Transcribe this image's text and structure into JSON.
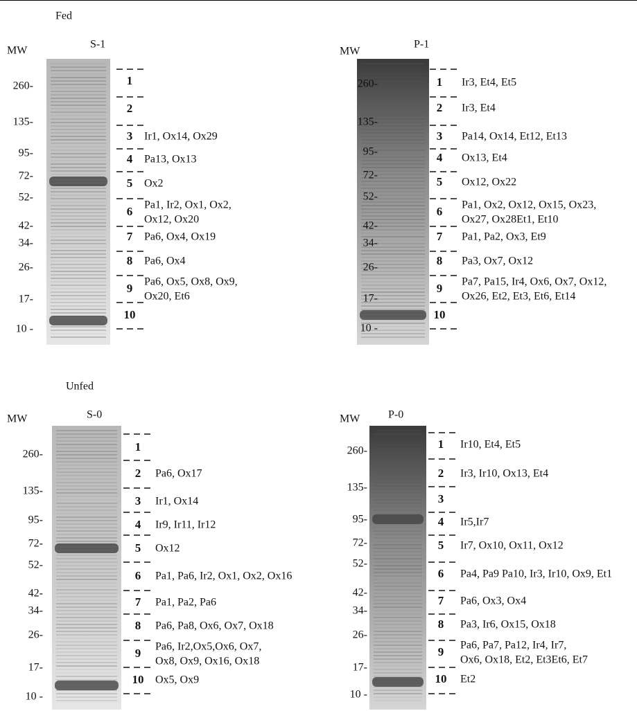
{
  "sections": [
    {
      "title": "Fed",
      "panels": [
        {
          "mw_title": "MW",
          "lane": "S-1",
          "mw_markers": [
            "260-",
            "135-",
            "95-",
            "72-",
            "52-",
            "42-",
            "34-",
            "26-",
            "17-",
            "10 -"
          ],
          "bands": [
            {
              "number": "1"
            },
            {
              "number": "2"
            },
            {
              "number": "3",
              "proteins": [
                "Ir1, Ox14, Ox29"
              ]
            },
            {
              "number": "4",
              "proteins": [
                "Pa13, Ox13"
              ]
            },
            {
              "number": "5",
              "proteins": [
                "Ox2"
              ]
            },
            {
              "number": "6",
              "proteins": [
                "Pa1, Ir2, Ox1, Ox2,",
                "Ox12, Ox20"
              ]
            },
            {
              "number": "7",
              "proteins": [
                "Pa6, Ox4, Ox19"
              ]
            },
            {
              "number": "8",
              "proteins": [
                "Pa6, Ox4"
              ]
            },
            {
              "number": "9",
              "proteins": [
                "Pa6, Ox5, Ox8, Ox9,",
                "Ox20, Et6"
              ]
            },
            {
              "number": "10"
            }
          ]
        },
        {
          "mw_title": "MW",
          "lane": "P-1",
          "mw_markers": [
            "260-",
            "135-",
            "95-",
            "72-",
            "52-",
            "42-",
            "34-",
            "26-",
            "17-",
            "10 -"
          ],
          "bands": [
            {
              "number": "1",
              "proteins": [
                "Ir3, Et4, Et5"
              ]
            },
            {
              "number": "2",
              "proteins": [
                "Ir3, Et4"
              ]
            },
            {
              "number": "3",
              "proteins": [
                "Pa14, Ox14, Et12, Et13"
              ]
            },
            {
              "number": "4",
              "proteins": [
                "Ox13, Et4"
              ]
            },
            {
              "number": "5",
              "proteins": [
                "Ox12, Ox22"
              ]
            },
            {
              "number": "6",
              "proteins": [
                "Pa1, Ox2, Ox12, Ox15, Ox23,",
                "Ox27, Ox28Et1, Et10"
              ]
            },
            {
              "number": "7",
              "proteins": [
                "Pa1, Pa2, Ox3, Et9"
              ]
            },
            {
              "number": "8",
              "proteins": [
                "Pa3, Ox7, Ox12"
              ]
            },
            {
              "number": "9",
              "proteins": [
                "Pa7,  Pa15, Ir4, Ox6, Ox7, Ox12,",
                "Ox26, Et2, Et3, Et6, Et14"
              ]
            },
            {
              "number": "10"
            }
          ]
        }
      ]
    },
    {
      "title": "Unfed",
      "panels": [
        {
          "mw_title": "MW",
          "lane": "S-0",
          "mw_markers": [
            "260-",
            "135-",
            "95-",
            "72-",
            "52-",
            "42-",
            "34-",
            "26-",
            "17-",
            "10 -"
          ],
          "bands": [
            {
              "number": "1"
            },
            {
              "number": "2",
              "proteins": [
                "Pa6, Ox17"
              ]
            },
            {
              "number": "3",
              "proteins": [
                "Ir1, Ox14"
              ]
            },
            {
              "number": "4",
              "proteins": [
                "Ir9, Ir11, Ir12"
              ]
            },
            {
              "number": "5",
              "proteins": [
                "Ox12"
              ]
            },
            {
              "number": "6",
              "proteins": [
                "Pa1, Pa6, Ir2, Ox1, Ox2, Ox16"
              ]
            },
            {
              "number": "7",
              "proteins": [
                "Pa1, Pa2, Pa6"
              ]
            },
            {
              "number": "8",
              "proteins": [
                "Pa6, Pa8, Ox6, Ox7, Ox18"
              ]
            },
            {
              "number": "9",
              "proteins": [
                "Pa6, Ir2,Ox5,Ox6, Ox7,",
                "Ox8, Ox9, Ox16, Ox18"
              ]
            },
            {
              "number": "10",
              "proteins": [
                "Ox5, Ox9"
              ]
            }
          ]
        },
        {
          "mw_title": "MW",
          "lane": "P-0",
          "mw_markers": [
            "260-",
            "135-",
            "95-",
            "72-",
            "52-",
            "42-",
            "34-",
            "26-",
            "17-",
            "10 -"
          ],
          "bands": [
            {
              "number": "1",
              "proteins": [
                "Ir10, Et4, Et5"
              ]
            },
            {
              "number": "2",
              "proteins": [
                "Ir3, Ir10, Ox13, Et4"
              ]
            },
            {
              "number": "3"
            },
            {
              "number": "4",
              "proteins": [
                "Ir5,Ir7"
              ]
            },
            {
              "number": "5",
              "proteins": [
                "Ir7, Ox10, Ox11, Ox12"
              ]
            },
            {
              "number": "6",
              "proteins": [
                "Pa4, Pa9 Pa10, Ir3, Ir10, Ox9, Et1"
              ]
            },
            {
              "number": "7",
              "proteins": [
                "Pa6, Ox3, Ox4"
              ]
            },
            {
              "number": "8",
              "proteins": [
                "Pa3, Ir6, Ox15, Ox18"
              ]
            },
            {
              "number": "9",
              "proteins": [
                "Pa6, Pa7, Pa12, Ir4, Ir7,",
                "Ox6, Ox18, Et2, Et3Et6, Et7"
              ]
            },
            {
              "number": "10",
              "proteins": [
                "Et2"
              ]
            }
          ]
        }
      ]
    }
  ]
}
